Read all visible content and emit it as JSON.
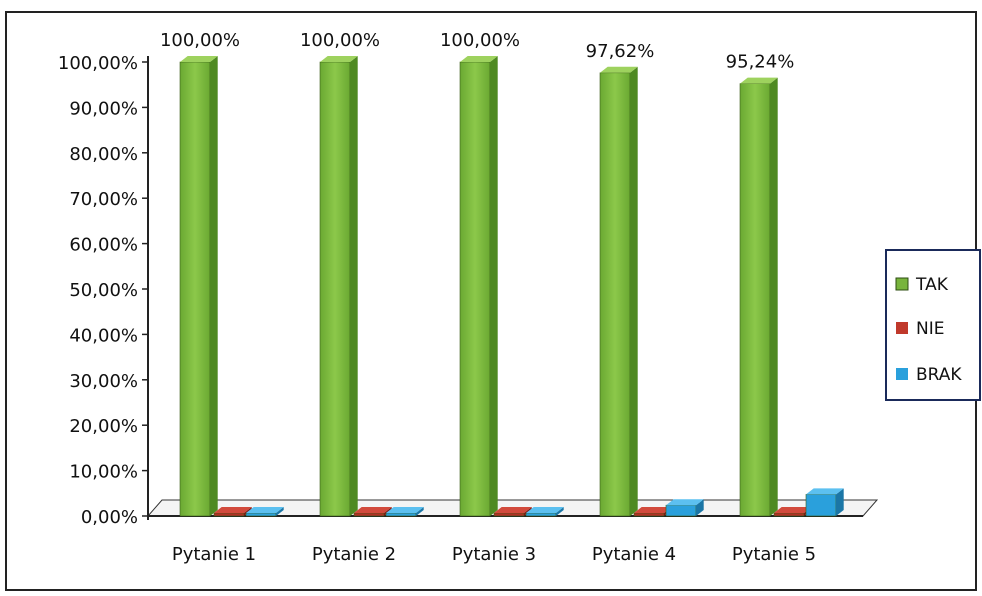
{
  "chart_data": {
    "type": "bar",
    "title": "",
    "xlabel": "",
    "ylabel": "",
    "categories": [
      "Pytanie 1",
      "Pytanie 2",
      "Pytanie 3",
      "Pytanie 4",
      "Pytanie 5"
    ],
    "series": [
      {
        "name": "TAK",
        "values": [
          100.0,
          100.0,
          100.0,
          97.62,
          95.24
        ],
        "color": "#78b43c",
        "data_labels": [
          "100,00%",
          "100,00%",
          "100,00%",
          "97,62%",
          "95,24%"
        ]
      },
      {
        "name": "NIE",
        "values": [
          0,
          0,
          0,
          0,
          0
        ],
        "color": "#c0392b"
      },
      {
        "name": "BRAK",
        "values": [
          0,
          0,
          0,
          2.38,
          4.76
        ],
        "color": "#2aa0dc"
      }
    ],
    "ylim": [
      0,
      100
    ],
    "yticks": [
      "0,00%",
      "10,00%",
      "20,00%",
      "30,00%",
      "40,00%",
      "50,00%",
      "60,00%",
      "70,00%",
      "80,00%",
      "90,00%",
      "100,00%"
    ],
    "legend_position": "right",
    "grid": false,
    "style": "3d-column"
  }
}
